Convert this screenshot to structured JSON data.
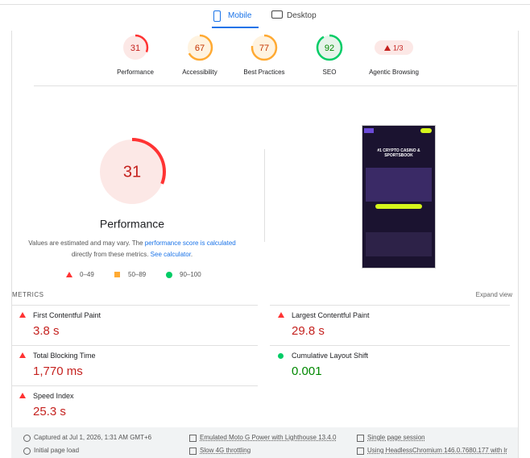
{
  "tabs": {
    "items": [
      "Mobile",
      "Desktop"
    ],
    "active": 0
  },
  "gauges": [
    {
      "label": "Performance",
      "score": 31
    },
    {
      "label": "Accessibility",
      "score": 67
    },
    {
      "label": "Best Practices",
      "score": 77
    },
    {
      "label": "SEO",
      "score": 92
    }
  ],
  "agentic": {
    "label": "Agentic Browsing",
    "value": "1/3"
  },
  "main": {
    "score": 31,
    "title": "Performance",
    "note": [
      "Values are estimated and may vary. The ",
      "performance score is calculated",
      "directly from these metrics. ",
      "See calculator",
      "."
    ],
    "legend": [
      "0–49",
      "50–89",
      "90–100"
    ],
    "screenshot_text": "#1 CRYPTO CASINO & SPORTSBOOK"
  },
  "metrics": {
    "title": "METRICS",
    "expand": "Expand view",
    "items": [
      {
        "label": "First Contentful Paint",
        "value": "3.8 s",
        "rating": "fail"
      },
      {
        "label": "Largest Contentful Paint",
        "value": "29.8 s",
        "rating": "fail"
      },
      {
        "label": "Total Blocking Time",
        "value": "1,770 ms",
        "rating": "fail"
      },
      {
        "label": "Cumulative Layout Shift",
        "value": "0.001",
        "rating": "pass"
      },
      {
        "label": "Speed Index",
        "value": "25.3 s",
        "rating": "fail"
      }
    ]
  },
  "footer": [
    "Captured at Jul 1, 2026, 1:31 AM GMT+6",
    "Emulated Moto G Power with Lighthouse 13.4.0",
    "Single page session",
    "Initial page load",
    "Slow 4G throttling",
    "Using HeadlessChromium 146.0.7680.177 with lr"
  ]
}
